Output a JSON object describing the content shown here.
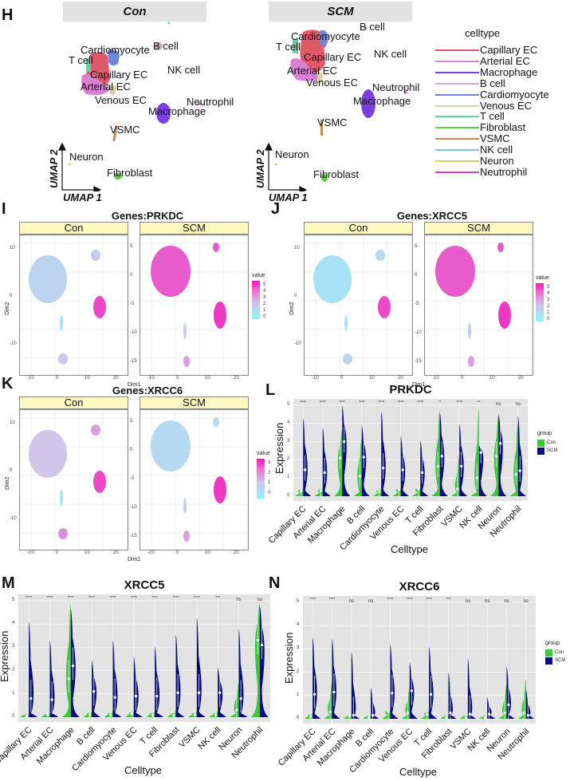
{
  "panels": {
    "H": {
      "letter": "H",
      "facets": [
        "Con",
        "SCM"
      ],
      "axis_x": "UMAP 1",
      "axis_y": "UMAP 2",
      "legend_title": "celltype",
      "celltypes": [
        {
          "name": "Capillary EC",
          "color": "#e0596b"
        },
        {
          "name": "Arterial EC",
          "color": "#d97fd4"
        },
        {
          "name": "Macrophage",
          "color": "#7b3fe0"
        },
        {
          "name": "B cell",
          "color": "#c9adc9"
        },
        {
          "name": "Cardiomyocyte",
          "color": "#6f86d9"
        },
        {
          "name": "Venous EC",
          "color": "#d6d1a5"
        },
        {
          "name": "T cell",
          "color": "#5fd6a0"
        },
        {
          "name": "Fibroblast",
          "color": "#59d23f"
        },
        {
          "name": "VSMC",
          "color": "#c98a55"
        },
        {
          "name": "NK cell",
          "color": "#7ac8d8"
        },
        {
          "name": "Neuron",
          "color": "#c9d46b"
        },
        {
          "name": "Neutrophil",
          "color": "#d63fc7"
        }
      ],
      "cluster_labels_con": [
        "Cardiomyocyte",
        "B cell",
        "T cell",
        "Capillary EC",
        "NK cell",
        "Arterial EC",
        "Venous EC",
        "Neutrophil",
        "Macrophage",
        "VSMC",
        "Neuron",
        "Fibroblast"
      ],
      "cluster_labels_scm": [
        "B cell",
        "Cardiomyocyte",
        "T cell",
        "NK cell",
        "Capillary EC",
        "Arterial EC",
        "Venous EC",
        "Neutrophil",
        "Macrophage",
        "VSMC",
        "Neuron",
        "Fibroblast"
      ]
    },
    "I": {
      "letter": "I",
      "title": "Genes:PRKDC",
      "facets": [
        "Con",
        "SCM"
      ],
      "xlabel": "Dim1",
      "ylabel": "Dim2",
      "legend_title": "value",
      "legend_ticks": [
        "5",
        "4",
        "3",
        "2",
        "1",
        "0"
      ]
    },
    "J": {
      "letter": "J",
      "title": "Genes:XRCC5",
      "facets": [
        "Con",
        "SCM"
      ],
      "xlabel": "Dim1",
      "ylabel": "Dim2",
      "legend_title": "value",
      "legend_ticks": [
        "5",
        "4",
        "3",
        "2",
        "1",
        "0"
      ]
    },
    "K": {
      "letter": "K",
      "title": "Genes:XRCC6",
      "facets": [
        "Con",
        "SCM"
      ],
      "xlabel": "Dim1",
      "ylabel": "Dim2",
      "legend_title": "value",
      "legend_ticks": [
        "3",
        "2",
        "1",
        "0"
      ]
    },
    "L": {
      "letter": "L"
    },
    "M": {
      "letter": "M"
    },
    "N": {
      "letter": "N"
    }
  },
  "feature_ticks": {
    "con_y": [
      "10",
      "0",
      "-10"
    ],
    "scm_y": [
      "5",
      "0",
      "-5",
      "-10",
      "-15"
    ],
    "x": [
      "-10",
      "0",
      "10",
      "20"
    ]
  },
  "chart_data": [
    {
      "type": "violin",
      "panel": "L",
      "title": "PRKDC",
      "xlabel": "Celltype",
      "ylabel": "Expression",
      "ylim": [
        0,
        5
      ],
      "yticks": [
        "0",
        "1",
        "2",
        "3",
        "4",
        "5"
      ],
      "legend_title": "group",
      "legend": [
        {
          "name": "Con",
          "color": "#3cc83c"
        },
        {
          "name": "SCM",
          "color": "#0b0b7a"
        }
      ],
      "categories": [
        "Capillary EC",
        "Arterial EC",
        "Macrophage",
        "B cell",
        "Cardiomyocyte",
        "Venous EC",
        "T cell",
        "Fibroblast",
        "VSMC",
        "NK cell",
        "Neuron",
        "Neutrophil"
      ],
      "significance": [
        "****",
        "****",
        "****",
        "****",
        "****",
        "****",
        "****",
        "**",
        "****",
        "**",
        "ns",
        "ns"
      ],
      "series": [
        {
          "name": "Con",
          "median": [
            0.3,
            0.3,
            2.1,
            1.1,
            0.25,
            0.35,
            0.4,
            1.65,
            0.4,
            1.0,
            2.2,
            1.2
          ],
          "max": [
            0.5,
            0.5,
            3.7,
            3.2,
            0.5,
            0.5,
            0.5,
            4.8,
            2.3,
            4.8,
            4.4,
            4.0
          ]
        },
        {
          "name": "SCM",
          "median": [
            1.45,
            1.3,
            3.0,
            2.15,
            1.55,
            1.45,
            1.3,
            2.2,
            1.65,
            2.4,
            2.9,
            1.4
          ],
          "max": [
            4.3,
            3.8,
            5.0,
            3.9,
            4.7,
            3.3,
            3.1,
            4.6,
            4.0,
            2.85,
            4.55,
            4.45
          ]
        }
      ]
    },
    {
      "type": "violin",
      "panel": "M",
      "title": "XRCC5",
      "xlabel": "Celltype",
      "ylabel": "Expression",
      "ylim": [
        0,
        5
      ],
      "yticks": [
        "0",
        "1",
        "2",
        "3",
        "4",
        "5"
      ],
      "categories": [
        "Capillary EC",
        "Arterial EC",
        "Macrophage",
        "B cell",
        "Cardiomyocyte",
        "Venous EC",
        "T cell",
        "Fibroblast",
        "VSMC",
        "NK cell",
        "Neuron",
        "Neutrophil"
      ],
      "significance": [
        "****",
        "****",
        "****",
        "****",
        "****",
        "****",
        "****",
        "****",
        "****",
        "***",
        "ns",
        "ns"
      ],
      "series": [
        {
          "name": "Con",
          "median": [
            0.05,
            0.1,
            1.65,
            0.1,
            0.1,
            0.15,
            0.1,
            0.08,
            0.1,
            0.1,
            0.3,
            3.3
          ],
          "max": [
            0.15,
            0.2,
            4.9,
            0.3,
            0.3,
            0.3,
            0.3,
            0.3,
            0.3,
            0.3,
            1.5,
            4.95
          ]
        },
        {
          "name": "SCM",
          "median": [
            0.8,
            0.75,
            2.2,
            1.1,
            0.85,
            0.9,
            0.9,
            1.05,
            1.05,
            1.05,
            0.8,
            3.1
          ],
          "max": [
            4.1,
            3.3,
            4.65,
            2.45,
            3.3,
            2.6,
            3.05,
            3.55,
            4.25,
            2.15,
            3.8,
            4.8
          ]
        }
      ]
    },
    {
      "type": "violin",
      "panel": "N",
      "title": "XRCC6",
      "xlabel": "Celltype",
      "ylabel": "Expression",
      "ylim": [
        0,
        5
      ],
      "yticks": [
        "0",
        "1",
        "2",
        "3",
        "4",
        "5"
      ],
      "legend_title": "group",
      "legend": [
        {
          "name": "Con",
          "color": "#3cc83c"
        },
        {
          "name": "SCM",
          "color": "#0b0b7a"
        }
      ],
      "categories": [
        "Capillary EC",
        "Arterial EC",
        "Macrophage",
        "B cell",
        "Cardiomyocyte",
        "Venous EC",
        "T cell",
        "Fibroblast",
        "VSMC",
        "NK cell",
        "Neuron",
        "Neutrophil"
      ],
      "significance": [
        "****",
        "****",
        "ns",
        "ns",
        "****",
        "****",
        "****",
        "***",
        "ns",
        "ns",
        "ns",
        "ns"
      ],
      "series": [
        {
          "name": "Con",
          "median": [
            0.1,
            0.3,
            0.1,
            0.05,
            0.3,
            0.25,
            0.2,
            0.05,
            0.05,
            0.02,
            0.25,
            0.25
          ],
          "max": [
            0.3,
            1.6,
            0.2,
            0.2,
            0.4,
            1.4,
            0.4,
            0.15,
            0.2,
            0.1,
            1.5,
            1.7
          ]
        },
        {
          "name": "SCM",
          "median": [
            1.05,
            1.15,
            0.15,
            0.15,
            1.1,
            1.2,
            1.05,
            0.25,
            0.2,
            0.2,
            0.6,
            0.15
          ],
          "max": [
            3.5,
            3.45,
            2.9,
            1.35,
            3.2,
            2.45,
            3.1,
            2.0,
            2.6,
            0.95,
            2.25,
            1.25
          ]
        }
      ]
    }
  ]
}
